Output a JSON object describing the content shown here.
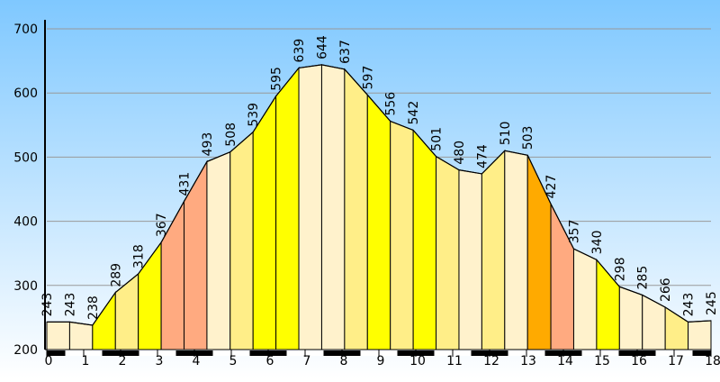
{
  "chart_data": {
    "type": "area",
    "x": [
      0,
      0.62,
      1.24,
      1.86,
      2.48,
      3.1,
      3.72,
      4.34,
      4.97,
      5.59,
      6.21,
      6.83,
      7.45,
      8.07,
      8.69,
      9.31,
      9.93,
      10.55,
      11.17,
      11.79,
      12.41,
      13.03,
      13.66,
      14.28,
      14.9,
      15.52,
      16.14,
      16.76,
      17.38,
      18
    ],
    "values": [
      243,
      243,
      238,
      289,
      318,
      367,
      431,
      493,
      508,
      539,
      595,
      639,
      644,
      637,
      597,
      556,
      542,
      501,
      480,
      474,
      510,
      503,
      427,
      357,
      340,
      298,
      285,
      266,
      243,
      245
    ],
    "segment_colors": [
      "#fff2cc",
      "#fff2cc",
      "#ffff00",
      "#ffee88",
      "#ffff00",
      "#ffaa80",
      "#ffaa80",
      "#fff2cc",
      "#ffee88",
      "#ffff00",
      "#ffff00",
      "#fff2cc",
      "#fff2cc",
      "#ffee88",
      "#ffff00",
      "#ffee88",
      "#ffff00",
      "#ffee88",
      "#fff2cc",
      "#ffee88",
      "#fff2cc",
      "#ffaa00",
      "#ffaa80",
      "#fff2cc",
      "#ffff00",
      "#fff2cc",
      "#fff2cc",
      "#ffee88",
      "#fff2cc"
    ],
    "xlim": [
      0,
      18
    ],
    "xticks": [
      0,
      1,
      2,
      3,
      4,
      5,
      6,
      7,
      8,
      9,
      10,
      11,
      12,
      13,
      14,
      15,
      16,
      17,
      18
    ],
    "ylim": [
      200,
      700
    ],
    "yticks": [
      200,
      300,
      400,
      500,
      600,
      700
    ],
    "grid": true
  }
}
